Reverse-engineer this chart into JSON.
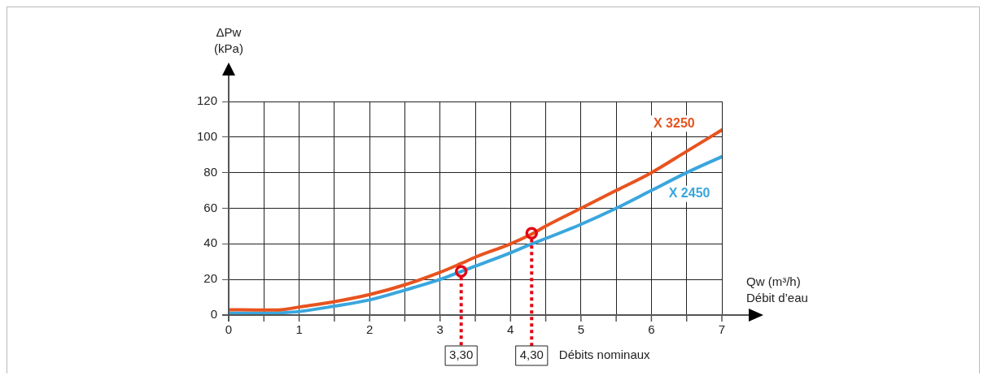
{
  "chart_data": {
    "type": "line",
    "ylabel": "ΔPw\n(kPa)",
    "xlabel": "Qw (m³/h)\nDébit d’eau",
    "x": [
      0,
      0.5,
      0.75,
      1,
      1.5,
      2,
      2.5,
      3,
      3.3,
      3.5,
      4,
      4.3,
      4.5,
      5,
      5.5,
      6,
      6.5,
      7
    ],
    "series": [
      {
        "name": "X 3250",
        "color": "#e8531f",
        "values": [
          3,
          2.8,
          3,
          4.5,
          7.5,
          11.5,
          17,
          24,
          29,
          32.5,
          40,
          45.5,
          50,
          60,
          70,
          80,
          92,
          104
        ]
      },
      {
        "name": "X 2450",
        "color": "#3aa6dd",
        "values": [
          1,
          1,
          1.3,
          2,
          5,
          8.5,
          14,
          20,
          24.5,
          27.5,
          35,
          40,
          43,
          51,
          60,
          70,
          80,
          89
        ]
      },
      {
        "type": "scatter",
        "marker": "circle",
        "color": "#e30613",
        "x": [
          3.3,
          4.3
        ],
        "values": [
          24.5,
          46
        ]
      }
    ],
    "xlim": [
      0,
      7
    ],
    "xticks": [
      0,
      {
        "value": 0.5,
        "label": null
      },
      1,
      {
        "value": 1.5,
        "label": null
      },
      2,
      {
        "value": 2.5,
        "label": null
      },
      3,
      {
        "value": 3.5,
        "label": null
      },
      4,
      {
        "value": 4.5,
        "label": null
      },
      5,
      {
        "value": 5.5,
        "label": null
      },
      6,
      {
        "value": 6.5,
        "label": null
      },
      7
    ],
    "ylim": [
      0,
      120
    ],
    "yticks": [
      0,
      20,
      40,
      60,
      80,
      100,
      120
    ],
    "ref_lines": [
      {
        "axis": "x",
        "value": 3.3,
        "label": "3,30",
        "color": "#e30613",
        "line_style": "dotted"
      },
      {
        "axis": "x",
        "value": 4.3,
        "label": "4,30",
        "color": "#e30613",
        "line_style": "dotted"
      }
    ],
    "annotations": [
      "Débits nominaux"
    ],
    "grid": true,
    "legend": false,
    "marker": "none",
    "line_style": "solid"
  }
}
